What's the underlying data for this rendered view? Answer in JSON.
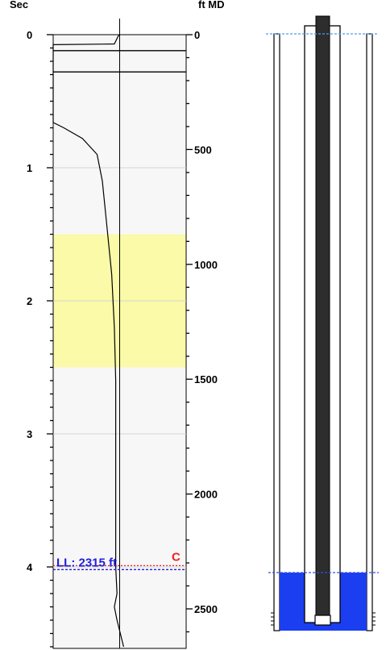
{
  "chart_data": {
    "type": "line",
    "left_axis": {
      "label": "Sec",
      "range": [
        0,
        4.6
      ],
      "major_ticks": [
        0,
        1,
        2,
        3,
        4
      ],
      "tick_labels": [
        "0",
        "1",
        "2",
        "3",
        "4"
      ]
    },
    "right_axis": {
      "label": "ft MD",
      "range": [
        0,
        2640
      ],
      "major_ticks": [
        0,
        500,
        1000,
        1500,
        2000,
        2500
      ],
      "tick_labels": [
        "0",
        "500",
        "1000",
        "1500",
        "2000",
        "2500"
      ],
      "minor_step": 100
    },
    "grid": true,
    "highlight_band": {
      "from_sec": 1.5,
      "to_sec": 2.5,
      "color": "#fafaa8"
    },
    "series": [
      {
        "values": [
          {
            "sec": 0.0,
            "x_rel": 0.5
          },
          {
            "sec": 0.01,
            "x_rel": 0.49
          },
          {
            "sec": 0.07,
            "x_rel": 0.46
          },
          {
            "sec": 0.075,
            "x_rel": 0.0
          },
          {
            "sec": 0.66,
            "x_rel": 0.0
          },
          {
            "sec": 0.7,
            "x_rel": 0.08
          },
          {
            "sec": 0.78,
            "x_rel": 0.22
          },
          {
            "sec": 0.9,
            "x_rel": 0.33
          },
          {
            "sec": 1.1,
            "x_rel": 0.37
          },
          {
            "sec": 1.4,
            "x_rel": 0.4
          },
          {
            "sec": 1.8,
            "x_rel": 0.44
          },
          {
            "sec": 2.2,
            "x_rel": 0.46
          },
          {
            "sec": 2.6,
            "x_rel": 0.47
          },
          {
            "sec": 3.0,
            "x_rel": 0.47
          },
          {
            "sec": 3.5,
            "x_rel": 0.47
          },
          {
            "sec": 4.0,
            "x_rel": 0.47
          },
          {
            "sec": 4.2,
            "x_rel": 0.48
          },
          {
            "sec": 4.3,
            "x_rel": 0.46
          },
          {
            "sec": 4.4,
            "x_rel": 0.48
          },
          {
            "sec": 4.6,
            "x_rel": 0.53
          }
        ]
      }
    ],
    "reference_lines": [
      {
        "name": "liquid-level",
        "sec": 4.02,
        "color": "#2020dd",
        "label": "LL: 2315 ft"
      },
      {
        "name": "c-marker",
        "sec": 3.99,
        "color": "#ee2020",
        "label": "C"
      }
    ],
    "surface_lines_sec": [
      0.12,
      0.28
    ]
  },
  "well_diagram": {
    "fluid_level_ft": 2315,
    "colors": {
      "fluid": "#1a3ef0",
      "fluid_line": "#3050ee",
      "tubing": "#2d2d2d",
      "surface_line": "#5599ee"
    }
  }
}
